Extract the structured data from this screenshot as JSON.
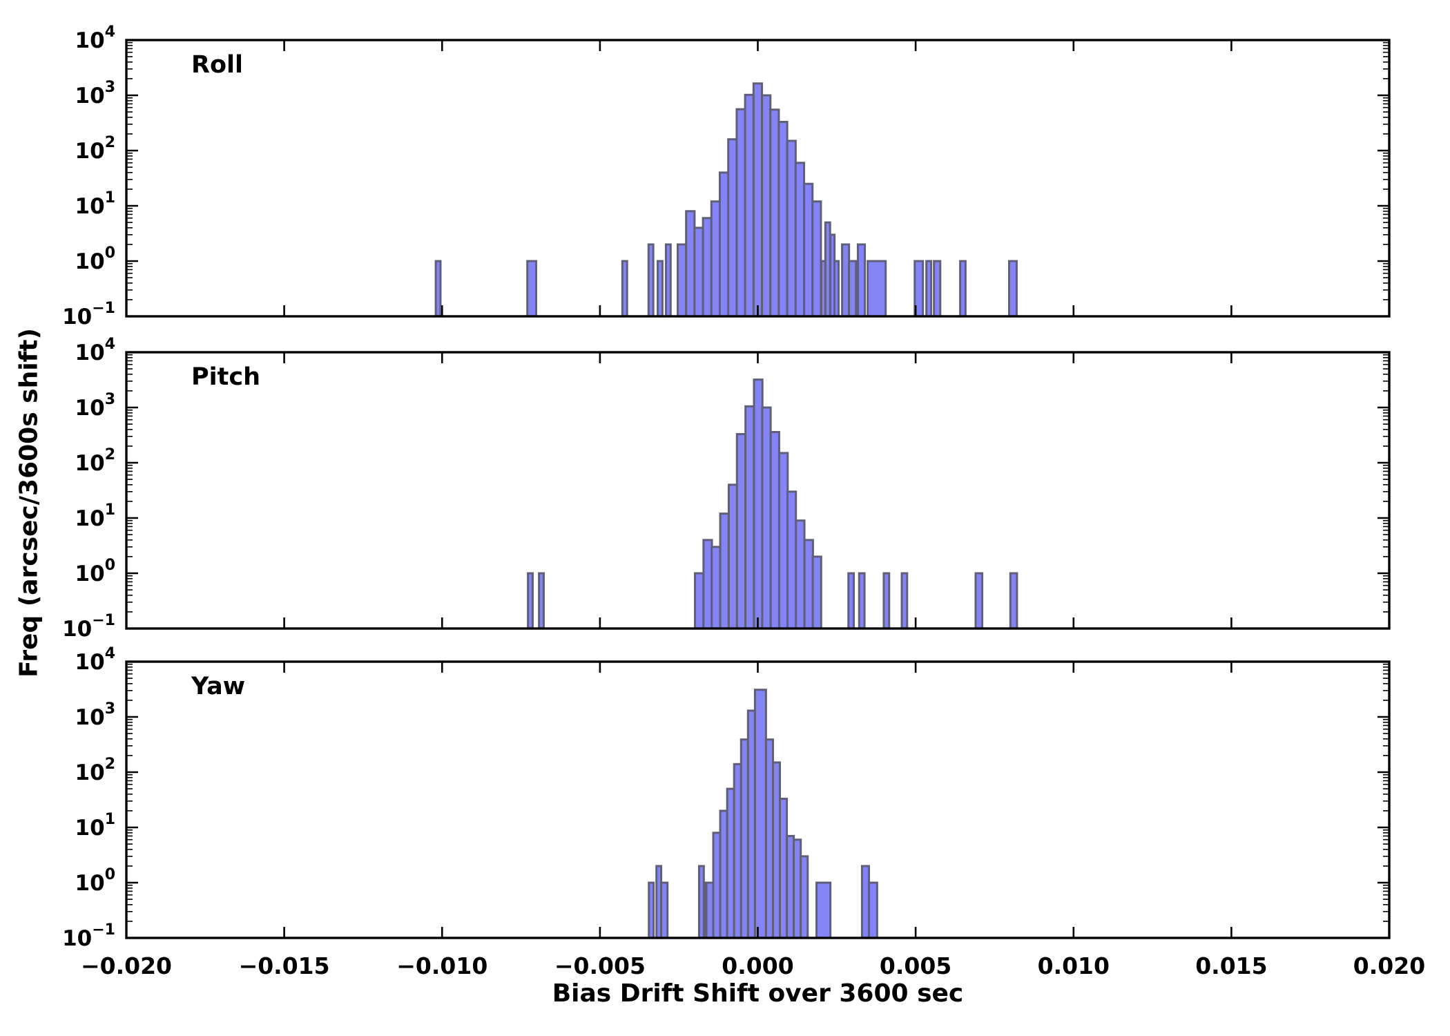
{
  "figure": {
    "background": "#ffffff",
    "axis_color": "#000000",
    "bar_fill": "#8484f6",
    "bar_edge": "#5f5f78",
    "xlabel": "Bias Drift Shift over 3600 sec",
    "ylabel": "Freq (arcsec/3600s shift)",
    "x_tick_labels": [
      "−0.020",
      "−0.015",
      "−0.010",
      "−0.005",
      "0.000",
      "0.005",
      "0.010",
      "0.015",
      "0.020"
    ],
    "y_tick_exponents": [
      4,
      3,
      2,
      1,
      0,
      -1
    ]
  },
  "chart_data": [
    {
      "type": "bar",
      "title": "Roll",
      "yscale": "log",
      "xlim": [
        -0.02,
        0.02
      ],
      "ylim": [
        0.1,
        10000
      ],
      "x_ticks": [
        -0.02,
        -0.015,
        -0.01,
        -0.005,
        0.0,
        0.005,
        0.01,
        0.015,
        0.02
      ],
      "xlabel": "Bias Drift Shift over 3600 sec",
      "ylabel": "Freq (arcsec/3600s shift)",
      "bars": [
        [
          -0.0102,
          1,
          0.00015
        ],
        [
          -0.0073,
          1,
          0.00028
        ],
        [
          -0.00429,
          1,
          0.00015
        ],
        [
          -0.00346,
          2,
          0.00015
        ],
        [
          -0.00317,
          1,
          0.00015
        ],
        [
          -0.00291,
          2,
          0.00015
        ],
        [
          -0.002537,
          2,
          0.000267
        ],
        [
          -0.00227,
          8,
          0.000267
        ],
        [
          -0.002003,
          4,
          0.000267
        ],
        [
          -0.001736,
          6,
          0.000267
        ],
        [
          -0.00147,
          12,
          0.000267
        ],
        [
          -0.001203,
          40,
          0.000267
        ],
        [
          -0.000936,
          160,
          0.000267
        ],
        [
          -0.000669,
          560,
          0.000267
        ],
        [
          -0.000402,
          1020,
          0.000267
        ],
        [
          -0.000135,
          1640,
          0.000267
        ],
        [
          0.000132,
          1000,
          0.000267
        ],
        [
          0.000399,
          550,
          0.000267
        ],
        [
          0.000665,
          330,
          0.000267
        ],
        [
          0.000932,
          150,
          0.000267
        ],
        [
          0.001199,
          60,
          0.000267
        ],
        [
          0.001466,
          25,
          0.000267
        ],
        [
          0.001732,
          12,
          0.000267
        ],
        [
          0.00201,
          1,
          0.00013
        ],
        [
          0.00214,
          5,
          0.00015
        ],
        [
          0.0023,
          3,
          0.00013
        ],
        [
          0.00243,
          1,
          0.00013
        ],
        [
          0.00267,
          2,
          0.00022
        ],
        [
          0.00289,
          1,
          0.00022
        ],
        [
          0.00317,
          2,
          0.00022
        ],
        [
          0.00348,
          1,
          0.00057
        ],
        [
          0.00497,
          1,
          0.00026
        ],
        [
          0.00534,
          1,
          0.00015
        ],
        [
          0.00558,
          1,
          0.0002
        ],
        [
          0.00641,
          1,
          0.00017
        ],
        [
          0.00796,
          1,
          0.00024
        ]
      ]
    },
    {
      "type": "bar",
      "title": "Pitch",
      "yscale": "log",
      "xlim": [
        -0.02,
        0.02
      ],
      "ylim": [
        0.1,
        10000
      ],
      "x_ticks": [
        -0.02,
        -0.015,
        -0.01,
        -0.005,
        0.0,
        0.005,
        0.01,
        0.015,
        0.02
      ],
      "xlabel": "Bias Drift Shift over 3600 sec",
      "ylabel": "Freq (arcsec/3600s shift)",
      "bars": [
        [
          -0.00728,
          1,
          0.00015
        ],
        [
          -0.00693,
          1,
          0.00015
        ],
        [
          -0.00199,
          1,
          0.000267
        ],
        [
          -0.00172,
          4,
          0.000267
        ],
        [
          -0.00146,
          3,
          0.000267
        ],
        [
          -0.00119,
          12,
          0.000267
        ],
        [
          -0.00092,
          40,
          0.000267
        ],
        [
          -0.00066,
          330,
          0.000267
        ],
        [
          -0.00039,
          1050,
          0.000267
        ],
        [
          -0.00012,
          3200,
          0.000267
        ],
        [
          0.00014,
          1000,
          0.000267
        ],
        [
          0.00041,
          360,
          0.000267
        ],
        [
          0.00068,
          150,
          0.000267
        ],
        [
          0.00094,
          30,
          0.000267
        ],
        [
          0.00121,
          9,
          0.000267
        ],
        [
          0.00148,
          4,
          0.000267
        ],
        [
          0.00174,
          2,
          0.000267
        ],
        [
          0.00287,
          1,
          0.00017
        ],
        [
          0.00321,
          1,
          0.00017
        ],
        [
          0.00399,
          1,
          0.00017
        ],
        [
          0.00456,
          1,
          0.00017
        ],
        [
          0.0069,
          1,
          0.00021
        ],
        [
          0.008,
          1,
          0.00021
        ]
      ]
    },
    {
      "type": "bar",
      "title": "Yaw",
      "yscale": "log",
      "xlim": [
        -0.02,
        0.02
      ],
      "ylim": [
        0.1,
        10000
      ],
      "x_ticks": [
        -0.02,
        -0.015,
        -0.01,
        -0.005,
        0.0,
        0.005,
        0.01,
        0.015,
        0.02
      ],
      "xlabel": "Bias Drift Shift over 3600 sec",
      "ylabel": "Freq (arcsec/3600s shift)",
      "bars": [
        [
          -0.00345,
          1,
          0.00015
        ],
        [
          -0.00321,
          2,
          0.00015
        ],
        [
          -0.00306,
          1,
          0.0002
        ],
        [
          -0.00186,
          2,
          0.00015
        ],
        [
          -0.00168,
          1,
          0.00017
        ],
        [
          -0.00163,
          1,
          0.00022
        ],
        [
          -0.00141,
          8,
          0.00022
        ],
        [
          -0.00119,
          20,
          0.00022
        ],
        [
          -0.00097,
          50,
          0.00022
        ],
        [
          -0.00075,
          140,
          0.00022
        ],
        [
          -0.00053,
          390,
          0.00022
        ],
        [
          -0.00031,
          1300,
          0.00022
        ],
        [
          -9e-05,
          3100,
          0.00035
        ],
        [
          0.00026,
          390,
          0.00022
        ],
        [
          0.00048,
          150,
          0.00022
        ],
        [
          0.0007,
          33,
          0.00022
        ],
        [
          0.00092,
          7,
          0.00022
        ],
        [
          0.00114,
          6,
          0.00022
        ],
        [
          0.00136,
          3,
          0.00022
        ],
        [
          0.00186,
          1,
          0.00044
        ],
        [
          0.0033,
          2,
          0.00022
        ],
        [
          0.00352,
          1,
          0.00026
        ]
      ]
    }
  ]
}
